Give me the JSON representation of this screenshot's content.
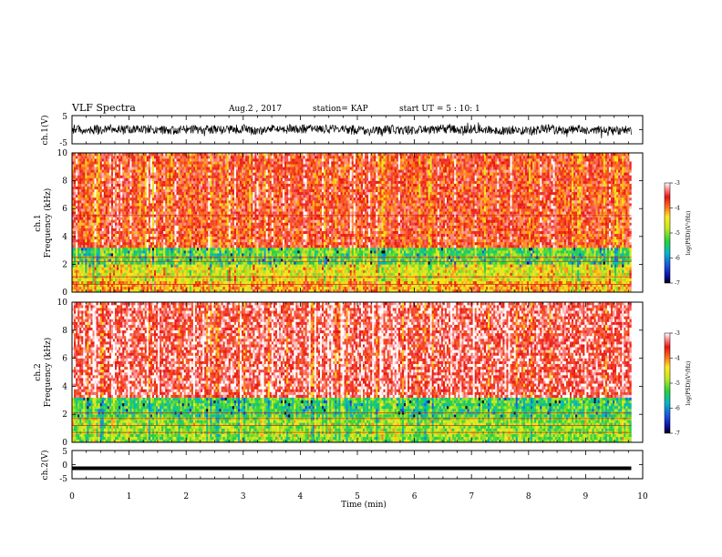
{
  "header": {
    "title": "VLF Spectra",
    "date": "Aug.2 , 2017",
    "station": "station= KAP",
    "start": "start UT = 5 : 10: 1"
  },
  "chart_data": [
    {
      "type": "line",
      "name": "ch1-waveform",
      "ylabel": "ch.1(V)",
      "ylim": [
        -5,
        5
      ],
      "yticks": [
        "5",
        "-5"
      ],
      "xlim": [
        0,
        10
      ],
      "note_values": "dense waveform trace, baseline near 0 V with excursions up to about +/-2.5 V across 0-9.8 min"
    },
    {
      "type": "heatmap",
      "name": "ch1-spectrogram",
      "ylabel": "ch.1\nFrequency (kHz)",
      "ylim": [
        0,
        10
      ],
      "yticks": [
        "0",
        "2",
        "4",
        "6",
        "8",
        "10"
      ],
      "xlim": [
        0,
        10
      ],
      "data_extent_x": [
        0,
        9.8
      ],
      "colorbar": {
        "label": "log(PSD)(V²/Hz)",
        "range": [
          -7,
          -3
        ],
        "ticks": [
          "-3",
          "-4",
          "-5",
          "-6",
          "-7"
        ]
      },
      "bands": [
        {
          "f_range": [
            3.2,
            10
          ],
          "typical_log_psd": -3.7
        },
        {
          "f_range": [
            2.0,
            3.2
          ],
          "typical_log_psd": -5.2
        },
        {
          "f_range": [
            0.8,
            2.0
          ],
          "typical_log_psd": -4.6
        },
        {
          "f_range": [
            0,
            0.8
          ],
          "typical_log_psd": -4.2
        }
      ],
      "lines_khz": [
        5.5,
        2.5,
        2.2,
        1.1,
        0.55
      ]
    },
    {
      "type": "heatmap",
      "name": "ch2-spectrogram",
      "ylabel": "ch.2\nFrequency (kHz)",
      "ylim": [
        0,
        10
      ],
      "yticks": [
        "0",
        "2",
        "4",
        "6",
        "8",
        "10"
      ],
      "xlim": [
        0,
        10
      ],
      "data_extent_x": [
        0,
        9.8
      ],
      "colorbar": {
        "label": "log(PSD)(V²/Hz)",
        "range": [
          -7,
          -3
        ],
        "ticks": [
          "-3",
          "-4",
          "-5",
          "-6",
          "-7"
        ]
      },
      "bands": [
        {
          "f_range": [
            3.2,
            10
          ],
          "typical_log_psd": -3.4
        },
        {
          "f_range": [
            1.8,
            3.2
          ],
          "typical_log_psd": -5.3
        },
        {
          "f_range": [
            0,
            1.8
          ],
          "typical_log_psd": -5.0
        }
      ],
      "lines_khz": [
        2.1,
        1.7,
        1.2,
        0.7
      ]
    },
    {
      "type": "line",
      "name": "ch2-waveform",
      "ylabel": "ch.2(V)",
      "ylim": [
        -5,
        5
      ],
      "yticks": [
        "5",
        "0",
        "-5"
      ],
      "xlim": [
        0,
        10
      ],
      "note_values": "constant trace near -1.3 V from 0 to 9.8 min"
    }
  ],
  "x_axis": {
    "label": "Time (min)",
    "ticks": [
      "0",
      "1",
      "2",
      "3",
      "4",
      "5",
      "6",
      "7",
      "8",
      "9",
      "10"
    ]
  }
}
